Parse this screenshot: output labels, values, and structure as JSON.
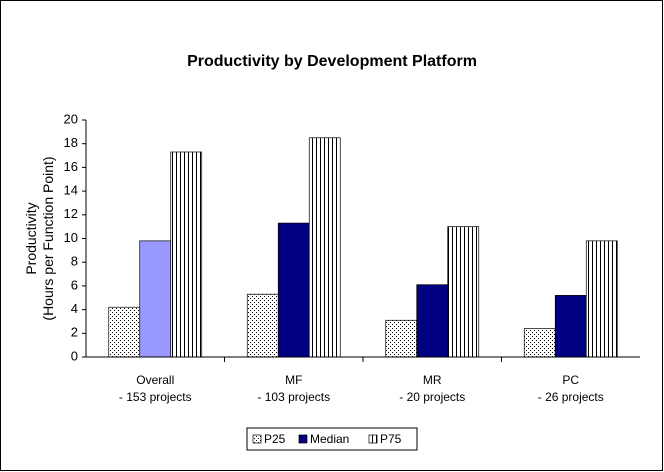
{
  "chart_data": {
    "type": "bar",
    "title": "Productivity by Development Platform",
    "ylabel": [
      "Productivity",
      "(Hours per Function Point)"
    ],
    "categories": [
      [
        "Overall",
        "- 153 projects"
      ],
      [
        "MF",
        "- 103 projects"
      ],
      [
        "MR",
        "- 20 projects"
      ],
      [
        "PC",
        "- 26 projects"
      ]
    ],
    "series": [
      {
        "name": "P25",
        "color": "#ffffff",
        "pattern": "dots",
        "values": [
          4.2,
          5.3,
          3.1,
          2.4
        ]
      },
      {
        "name": "Median",
        "color": "#000080",
        "point_colors": [
          "#9999ff",
          "#000080",
          "#000080",
          "#000080"
        ],
        "values": [
          9.8,
          11.3,
          6.1,
          5.2
        ]
      },
      {
        "name": "P75",
        "color": "#ffffff",
        "pattern": "vstripes",
        "values": [
          17.3,
          18.5,
          11.0,
          9.8
        ]
      }
    ],
    "ylim": [
      0,
      20
    ],
    "yticks": [
      0,
      2,
      4,
      6,
      8,
      10,
      12,
      14,
      16,
      18,
      20
    ],
    "legend": "bottom"
  }
}
